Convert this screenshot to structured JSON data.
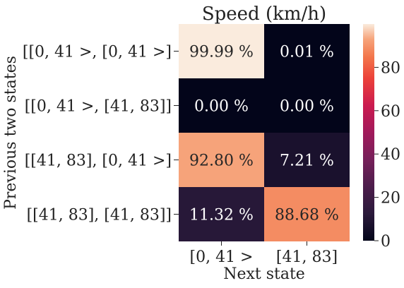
{
  "chart_data": {
    "type": "heatmap",
    "title": "Speed (km/h)",
    "xlabel": "Next state",
    "ylabel": "Previous two states",
    "x_categories": [
      "[0, 41 >",
      "[41, 83]"
    ],
    "y_categories": [
      "[[0, 41 >, [0, 41 >]",
      "[[0, 41 >, [41, 83]]",
      "[[41, 83], [0, 41 >]",
      "[[41, 83], [41, 83]]"
    ],
    "values": [
      [
        99.99,
        0.01
      ],
      [
        0.0,
        0.0
      ],
      [
        92.8,
        7.21
      ],
      [
        11.32,
        88.68
      ]
    ],
    "cell_labels": [
      [
        "99.99 %",
        "0.01 %"
      ],
      [
        "0.00 %",
        "0.00 %"
      ],
      [
        "92.80 %",
        "7.21 %"
      ],
      [
        "11.32 %",
        "88.68 %"
      ]
    ],
    "colorbar": {
      "range": [
        0,
        100
      ],
      "ticks": [
        0,
        20,
        40,
        60,
        80
      ],
      "tick_labels": [
        "0",
        "20",
        "40",
        "60",
        "80"
      ],
      "colormap": "rocket"
    }
  }
}
